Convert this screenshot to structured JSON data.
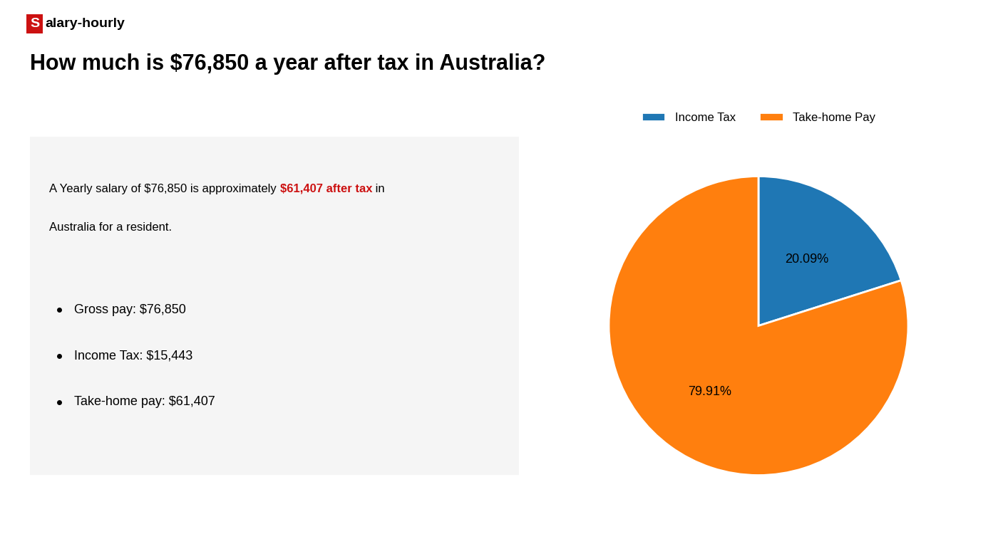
{
  "chart_data": {
    "type": "pie",
    "title": "How much is $76,850 a year after tax in Australia?",
    "annotations": [
      [
        {
          "text": "S",
          "color": "#cc1111"
        },
        {
          "text": "alary-hourly"
        }
      ],
      [
        {
          "text": "A Yearly salary of $76,850 is approximately "
        },
        {
          "text": "$61,407 after tax",
          "color": "#cc1111"
        },
        {
          "text": " in"
        }
      ],
      [
        {
          "text": "Australia for a resident."
        }
      ],
      [
        {
          "text": "Gross pay: $76,850"
        }
      ],
      [
        {
          "text": "Income Tax: $15,443"
        }
      ],
      [
        {
          "text": "Take-home pay: $61,407"
        }
      ]
    ],
    "categories": [
      "Income Tax",
      "Take-home Pay"
    ],
    "values": [
      20.09,
      79.91
    ],
    "value_labels": [
      "20.09%",
      "79.91%"
    ],
    "data_labels": true,
    "legend": "upper center"
  }
}
